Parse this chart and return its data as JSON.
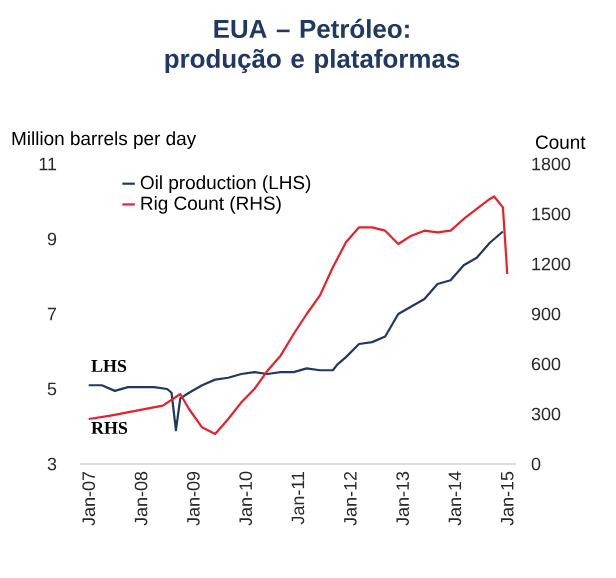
{
  "chart_data": {
    "type": "line",
    "title": "EUA – Petróleo: produção e plataformas",
    "ylabel": "Million barrels per day",
    "y2label": "Count",
    "x": [
      "2007-01",
      "2007-04",
      "2007-07",
      "2007-10",
      "2008-01",
      "2008-04",
      "2008-07",
      "2008-08",
      "2008-09",
      "2008-10",
      "2008-12",
      "2009-03",
      "2009-06",
      "2009-09",
      "2009-12",
      "2010-03",
      "2010-06",
      "2010-09",
      "2010-12",
      "2011-03",
      "2011-06",
      "2011-09",
      "2011-10",
      "2011-12",
      "2012-03",
      "2012-06",
      "2012-09",
      "2012-12",
      "2013-03",
      "2013-06",
      "2013-09",
      "2013-12",
      "2014-03",
      "2014-06",
      "2014-09",
      "2014-12"
    ],
    "series": [
      {
        "name": "Oil production (LHS)",
        "color": "#1f3864",
        "values": [
          5.1,
          5.1,
          4.95,
          5.05,
          5.05,
          5.05,
          5.0,
          4.9,
          3.9,
          4.75,
          4.9,
          5.1,
          5.25,
          5.3,
          5.4,
          5.45,
          5.4,
          5.45,
          5.45,
          5.55,
          5.5,
          5.5,
          5.65,
          5.85,
          6.2,
          6.25,
          6.4,
          7.0,
          7.2,
          7.4,
          7.8,
          7.9,
          8.3,
          8.5,
          8.9,
          9.2
        ]
      },
      {
        "name": "Rig Count (RHS)",
        "color": "#e8202a",
        "axis": "y2",
        "x": [
          "2007-01",
          "2007-06",
          "2007-12",
          "2008-06",
          "2008-10",
          "2008-12",
          "2009-03",
          "2009-06",
          "2009-09",
          "2009-12",
          "2010-03",
          "2010-06",
          "2010-09",
          "2010-12",
          "2011-03",
          "2011-06",
          "2011-09",
          "2011-12",
          "2012-03",
          "2012-06",
          "2012-09",
          "2012-12",
          "2013-03",
          "2013-06",
          "2013-09",
          "2013-12",
          "2014-03",
          "2014-06",
          "2014-09",
          "2014-10",
          "2014-12",
          "2015-01"
        ],
        "values": [
          270,
          290,
          320,
          350,
          420,
          330,
          220,
          180,
          270,
          370,
          450,
          560,
          650,
          780,
          900,
          1010,
          1180,
          1330,
          1420,
          1420,
          1400,
          1320,
          1370,
          1400,
          1390,
          1400,
          1470,
          1530,
          1590,
          1605,
          1540,
          1140
        ]
      }
    ],
    "xlim": [
      "2006-11",
      "2015-03"
    ],
    "xticks": [
      {
        "value": "2007-01",
        "label": "Jan-07"
      },
      {
        "value": "2008-01",
        "label": "Jan-08"
      },
      {
        "value": "2009-01",
        "label": "Jan-09"
      },
      {
        "value": "2010-01",
        "label": "Jan-10"
      },
      {
        "value": "2011-01",
        "label": "Jan-11"
      },
      {
        "value": "2012-01",
        "label": "Jan-12"
      },
      {
        "value": "2013-01",
        "label": "Jan-13"
      },
      {
        "value": "2014-01",
        "label": "Jan-14"
      },
      {
        "value": "2015-01",
        "label": "Jan-15"
      }
    ],
    "ylim": [
      3,
      11
    ],
    "yticks": [
      3,
      5,
      7,
      9,
      11
    ],
    "y2lim": [
      0,
      1800
    ],
    "y2ticks": [
      0,
      300,
      600,
      900,
      1200,
      1500,
      1800
    ],
    "legend": "top left",
    "annotations": [
      "LHS",
      "RHS"
    ]
  }
}
